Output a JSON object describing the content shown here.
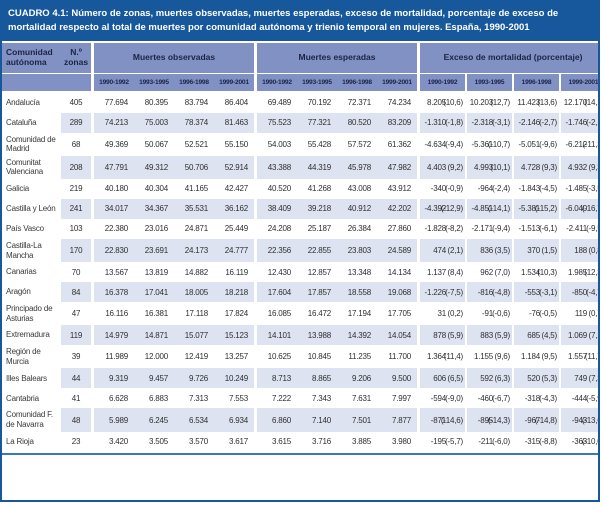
{
  "title": "CUADRO 4.1: Número de zonas, muertes observadas, muertes esperadas, exceso de mortalidad, porcentaje de exceso de mortalidad respecto al total de muertes por comunidad autónoma y trienio temporal en mujeres. España, 1990-2001",
  "colors": {
    "title_bg": "#17579b",
    "header_bg": "#8191c3",
    "header_text": "#1c2347",
    "row_stripe": "#dee3f1",
    "body_text": "#2f2f2f",
    "bottom_rule": "#3a78bd"
  },
  "header": {
    "community": "Comunidad autónoma",
    "zones": "N.º zonas",
    "observed": "Muertes observadas",
    "expected": "Muertes esperadas",
    "excess": "Exceso de mortalidad (porcentaje)",
    "periods": [
      "1990-1992",
      "1993-1995",
      "1996-1998",
      "1999-2001"
    ]
  },
  "table": {
    "rows": [
      {
        "name": "Andalucía",
        "zones": "405",
        "observed": [
          "77.694",
          "80.395",
          "83.794",
          "86.404"
        ],
        "expected": [
          "69.489",
          "70.192",
          "72.371",
          "74.234"
        ],
        "excess": [
          [
            "8.205",
            "(10,6)"
          ],
          [
            "10.203",
            "(12,7)"
          ],
          [
            "11.423",
            "(13,6)"
          ],
          [
            "12.170",
            "(14,1)"
          ]
        ]
      },
      {
        "name": "Cataluña",
        "zones": "289",
        "observed": [
          "74.213",
          "75.003",
          "78.374",
          "81.463"
        ],
        "expected": [
          "75.523",
          "77.321",
          "80.520",
          "83.209"
        ],
        "excess": [
          [
            "-1.310",
            "(-1,8)"
          ],
          [
            "-2.318",
            "(-3,1)"
          ],
          [
            "-2.146",
            "(-2,7)"
          ],
          [
            "-1.746",
            "(-2,1)"
          ]
        ]
      },
      {
        "name": "Comunidad de Madrid",
        "zones": "68",
        "observed": [
          "49.369",
          "50.067",
          "52.521",
          "55.150"
        ],
        "expected": [
          "54.003",
          "55.428",
          "57.572",
          "61.362"
        ],
        "excess": [
          [
            "-4.634",
            "(-9,4)"
          ],
          [
            "-5.361",
            "(-10,7)"
          ],
          [
            "-5.051",
            "(-9,6)"
          ],
          [
            "-6.212",
            "(-11,3)"
          ]
        ]
      },
      {
        "name": "Comunitat Valenciana",
        "zones": "208",
        "observed": [
          "47.791",
          "49.312",
          "50.706",
          "52.914"
        ],
        "expected": [
          "43.388",
          "44.319",
          "45.978",
          "47.982"
        ],
        "excess": [
          [
            "4.403",
            "(9,2)"
          ],
          [
            "4.993",
            "(10,1)"
          ],
          [
            "4.728",
            "(9,3)"
          ],
          [
            "4.932",
            "(9,3)"
          ]
        ]
      },
      {
        "name": "Galicia",
        "zones": "219",
        "observed": [
          "40.180",
          "40.304",
          "41.165",
          "42.427"
        ],
        "expected": [
          "40.520",
          "41.268",
          "43.008",
          "43.912"
        ],
        "excess": [
          [
            "-340",
            "(-0,9)"
          ],
          [
            "-964",
            "(-2,4)"
          ],
          [
            "-1.843",
            "(-4,5)"
          ],
          [
            "-1.485",
            "(-3,5)"
          ]
        ]
      },
      {
        "name": "Castilla y León",
        "zones": "241",
        "observed": [
          "34.017",
          "34.367",
          "35.531",
          "36.162"
        ],
        "expected": [
          "38.409",
          "39.218",
          "40.912",
          "42.202"
        ],
        "excess": [
          [
            "-4.392",
            "(-12,9)"
          ],
          [
            "-4.851",
            "(-14,1)"
          ],
          [
            "-5.381",
            "(-15,2)"
          ],
          [
            "-6.040",
            "(-16,7)"
          ]
        ]
      },
      {
        "name": "País Vasco",
        "zones": "103",
        "observed": [
          "22.380",
          "23.016",
          "24.871",
          "25.449"
        ],
        "expected": [
          "24.208",
          "25.187",
          "26.384",
          "27.860"
        ],
        "excess": [
          [
            "-1.828",
            "(-8,2)"
          ],
          [
            "-2.171",
            "(-9,4)"
          ],
          [
            "-1.513",
            "(-6,1)"
          ],
          [
            "-2.411",
            "(-9,5)"
          ]
        ]
      },
      {
        "name": "Castilla-La Mancha",
        "zones": "170",
        "observed": [
          "22.830",
          "23.691",
          "24.173",
          "24.777"
        ],
        "expected": [
          "22.356",
          "22.855",
          "23.803",
          "24.589"
        ],
        "excess": [
          [
            "474",
            "(2,1)"
          ],
          [
            "836",
            "(3,5)"
          ],
          [
            "370",
            "(1,5)"
          ],
          [
            "188",
            "(0,8)"
          ]
        ]
      },
      {
        "name": "Canarias",
        "zones": "70",
        "observed": [
          "13.567",
          "13.819",
          "14.882",
          "16.119"
        ],
        "expected": [
          "12.430",
          "12.857",
          "13.348",
          "14.134"
        ],
        "excess": [
          [
            "1.137",
            "(8,4)"
          ],
          [
            "962",
            "(7,0)"
          ],
          [
            "1.534",
            "(10,3)"
          ],
          [
            "1.985",
            "(12,3)"
          ]
        ]
      },
      {
        "name": "Aragón",
        "zones": "84",
        "observed": [
          "16.378",
          "17.041",
          "18.005",
          "18.218"
        ],
        "expected": [
          "17.604",
          "17.857",
          "18.558",
          "19.068"
        ],
        "excess": [
          [
            "-1.226",
            "(-7,5)"
          ],
          [
            "-816",
            "(-4,8)"
          ],
          [
            "-553",
            "(-3,1)"
          ],
          [
            "-850",
            "(-4,7)"
          ]
        ]
      },
      {
        "name": "Principado de Asturias",
        "zones": "47",
        "observed": [
          "16.116",
          "16.381",
          "17.118",
          "17.824"
        ],
        "expected": [
          "16.085",
          "16.472",
          "17.194",
          "17.705"
        ],
        "excess": [
          [
            "31",
            "(0,2)"
          ],
          [
            "-91",
            "(-0,6)"
          ],
          [
            "-76",
            "(-0,5)"
          ],
          [
            "119",
            "(0,7)"
          ]
        ]
      },
      {
        "name": "Extremadura",
        "zones": "119",
        "observed": [
          "14.979",
          "14.871",
          "15.077",
          "15.123"
        ],
        "expected": [
          "14.101",
          "13.988",
          "14.392",
          "14.054"
        ],
        "excess": [
          [
            "878",
            "(5,9)"
          ],
          [
            "883",
            "(5,9)"
          ],
          [
            "685",
            "(4,5)"
          ],
          [
            "1.069",
            "(7,1)"
          ]
        ]
      },
      {
        "name": "Región de Murcia",
        "zones": "39",
        "observed": [
          "11.989",
          "12.000",
          "12.419",
          "13.257"
        ],
        "expected": [
          "10.625",
          "10.845",
          "11.235",
          "11.700"
        ],
        "excess": [
          [
            "1.364",
            "(11,4)"
          ],
          [
            "1.155",
            "(9,6)"
          ],
          [
            "1.184",
            "(9,5)"
          ],
          [
            "1.557",
            "(11,7)"
          ]
        ]
      },
      {
        "name": "Illes Balears",
        "zones": "44",
        "observed": [
          "9.319",
          "9.457",
          "9.726",
          "10.249"
        ],
        "expected": [
          "8.713",
          "8.865",
          "9.206",
          "9.500"
        ],
        "excess": [
          [
            "606",
            "(6,5)"
          ],
          [
            "592",
            "(6,3)"
          ],
          [
            "520",
            "(5,3)"
          ],
          [
            "749",
            "(7,3)"
          ]
        ]
      },
      {
        "name": "Cantabria",
        "zones": "41",
        "observed": [
          "6.628",
          "6.883",
          "7.313",
          "7.553"
        ],
        "expected": [
          "7.222",
          "7.343",
          "7.631",
          "7.997"
        ],
        "excess": [
          [
            "-594",
            "(-9,0)"
          ],
          [
            "-460",
            "(-6,7)"
          ],
          [
            "-318",
            "(-4,3)"
          ],
          [
            "-444",
            "(-5,9)"
          ]
        ]
      },
      {
        "name": "Comunidad F. de Navarra",
        "zones": "48",
        "observed": [
          "5.989",
          "6.245",
          "6.534",
          "6.934"
        ],
        "expected": [
          "6.860",
          "7.140",
          "7.501",
          "7.877"
        ],
        "excess": [
          [
            "-871",
            "(-14,6)"
          ],
          [
            "-895",
            "(-14,3)"
          ],
          [
            "-967",
            "(-14,8)"
          ],
          [
            "-943",
            "(-13,6)"
          ]
        ]
      },
      {
        "name": "La Rioja",
        "zones": "23",
        "observed": [
          "3.420",
          "3.505",
          "3.570",
          "3.617"
        ],
        "expected": [
          "3.615",
          "3.716",
          "3.885",
          "3.980"
        ],
        "excess": [
          [
            "-195",
            "(-5,7)"
          ],
          [
            "-211",
            "(-6,0)"
          ],
          [
            "-315",
            "(-8,8)"
          ],
          [
            "-363",
            "(-10,0)"
          ]
        ]
      }
    ]
  }
}
